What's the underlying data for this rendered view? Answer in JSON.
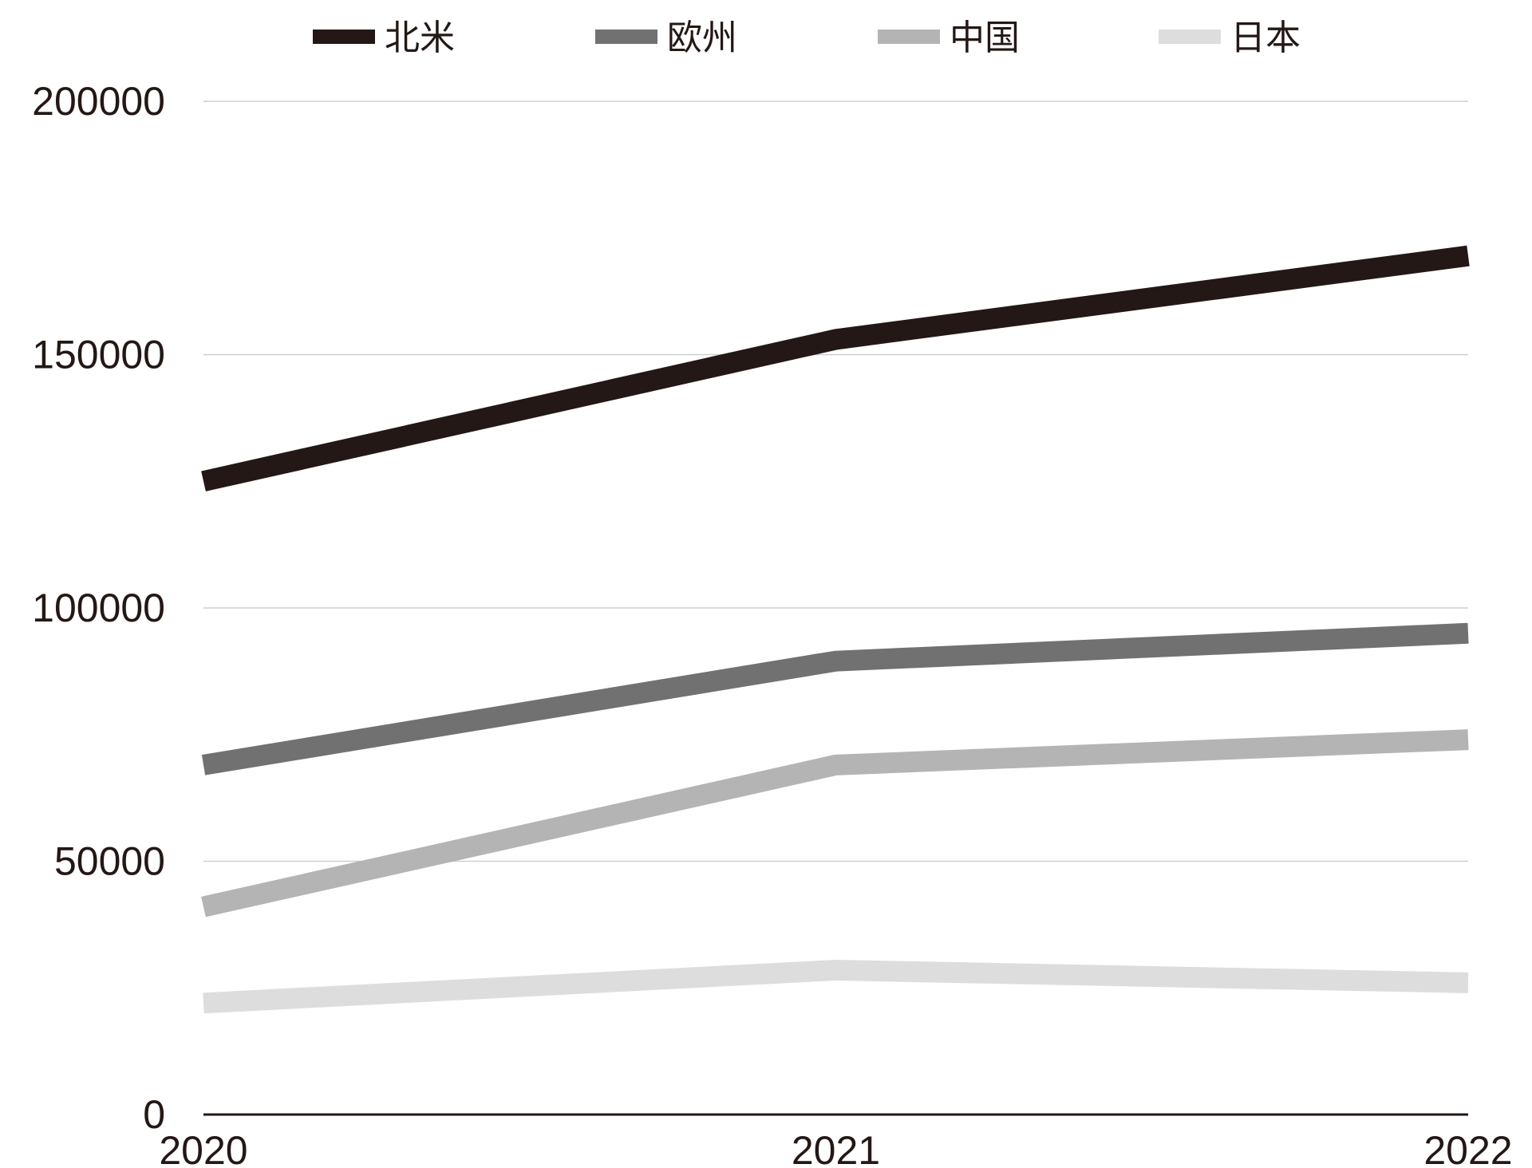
{
  "chart_data": {
    "type": "line",
    "categories": [
      "2020",
      "2021",
      "2022"
    ],
    "series": [
      {
        "name": "北米",
        "color": "#231815",
        "values": [
          125000,
          153000,
          169500
        ]
      },
      {
        "name": "欧州",
        "color": "#717171",
        "values": [
          69000,
          89500,
          95000
        ]
      },
      {
        "name": "中国",
        "color": "#b4b4b4",
        "values": [
          41000,
          69000,
          74000
        ]
      },
      {
        "name": "日本",
        "color": "#dcdddc",
        "values": [
          22000,
          28500,
          26000
        ]
      }
    ],
    "y_ticks": [
      "0",
      "50000",
      "100000",
      "150000",
      "200000"
    ],
    "ylim": [
      0,
      200000
    ],
    "grid": true,
    "legend": "top",
    "title": "",
    "xlabel": "",
    "ylabel": ""
  }
}
